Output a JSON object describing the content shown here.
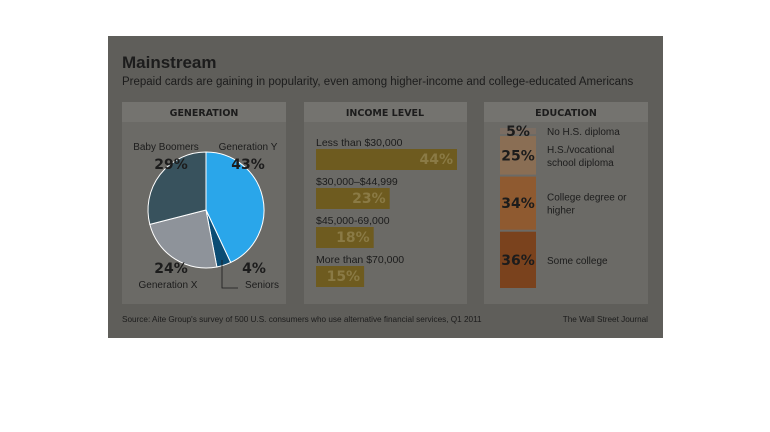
{
  "title": "Mainstream",
  "subtitle": "Prepaid cards are gaining in popularity, even among higher-income and college-educated Americans",
  "source": "Source: Aite Group's survey of 500 U.S. consumers who use alternative financial services, Q1 2011",
  "credit": "The Wall Street Journal",
  "colors": {
    "background": "#5f5e5a",
    "panel": "#6b6a66",
    "header_band": "#74736f",
    "pie": [
      "#2aa6ea",
      "#0b4c73",
      "#8e939a",
      "#38525d"
    ],
    "income_bar": "#6e5b1f",
    "education": [
      "#7b6d62",
      "#8a6e54",
      "#8f5a30",
      "#7a421d"
    ]
  },
  "chart_data": [
    {
      "type": "pie",
      "panel_title": "GENERATION",
      "categories": [
        "Generation Y",
        "Seniors",
        "Generation X",
        "Baby Boomers"
      ],
      "values": [
        43,
        4,
        24,
        29
      ],
      "labels": [
        "43%",
        "4%",
        "24%",
        "29%"
      ]
    },
    {
      "type": "bar",
      "panel_title": "INCOME LEVEL",
      "categories": [
        "Less than $30,000",
        "$30,000–$44,999",
        "$45,000-69,000",
        "More than $70,000"
      ],
      "values": [
        44,
        23,
        18,
        15
      ],
      "labels": [
        "44%",
        "23%",
        "18%",
        "15%"
      ]
    },
    {
      "type": "bar",
      "panel_title": "EDUCATION",
      "categories": [
        "No H.S. diploma",
        "H.S./vocational school diploma",
        "College degree or higher",
        "Some college"
      ],
      "category_lines": [
        [
          "No H.S. diploma"
        ],
        [
          "H.S./vocational",
          "school diploma"
        ],
        [
          "College degree or",
          "higher"
        ],
        [
          "Some college"
        ]
      ],
      "values": [
        5,
        25,
        34,
        36
      ],
      "labels": [
        "5%",
        "25%",
        "34%",
        "36%"
      ]
    }
  ]
}
